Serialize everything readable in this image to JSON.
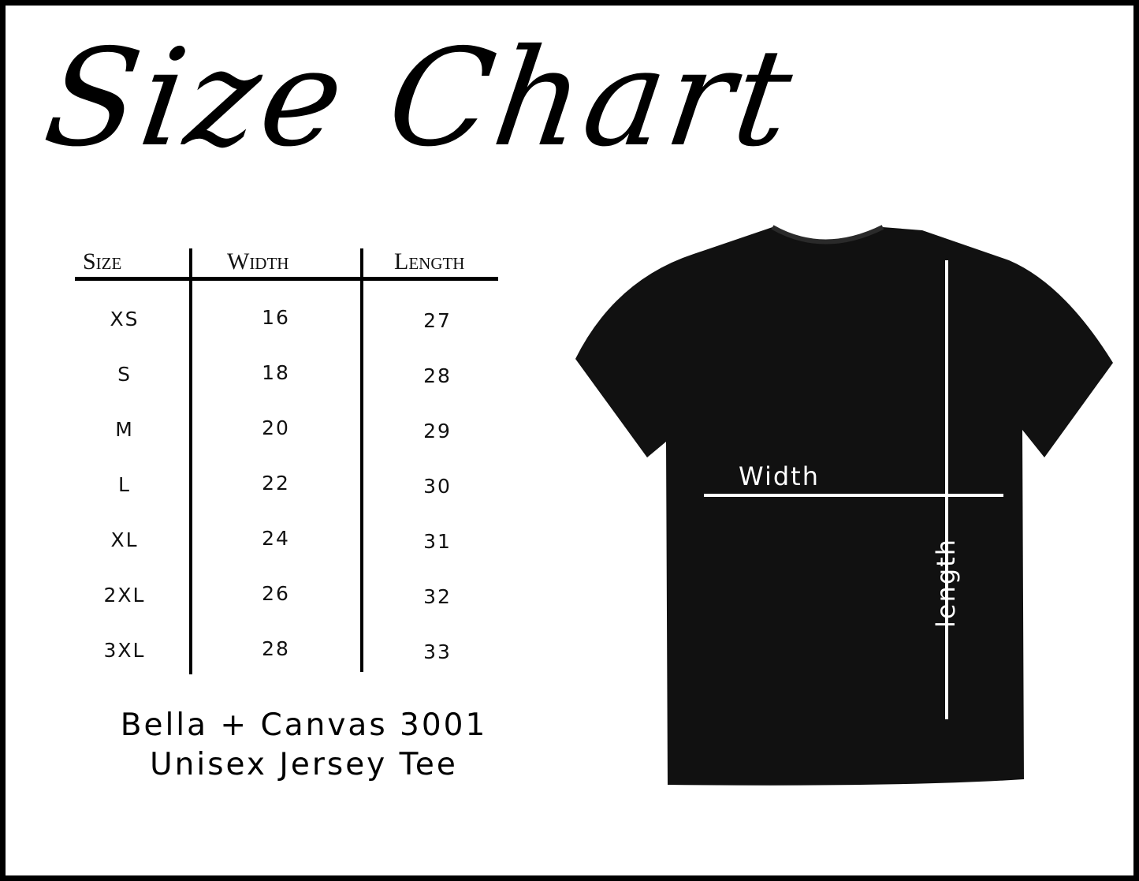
{
  "title": "Size Chart",
  "table": {
    "headers": [
      "Size",
      "Width",
      "Length"
    ],
    "rows": [
      [
        "XS",
        "16",
        "27"
      ],
      [
        "S",
        "18",
        "28"
      ],
      [
        "M",
        "20",
        "29"
      ],
      [
        "L",
        "22",
        "30"
      ],
      [
        "XL",
        "24",
        "31"
      ],
      [
        "2XL",
        "26",
        "32"
      ],
      [
        "3XL",
        "28",
        "33"
      ]
    ]
  },
  "caption": {
    "line1": "Bella + Canvas 3001",
    "line2": "Unisex Jersey Tee"
  },
  "shirt": {
    "width_label": "Width",
    "length_label": "length",
    "color": "#111111"
  }
}
